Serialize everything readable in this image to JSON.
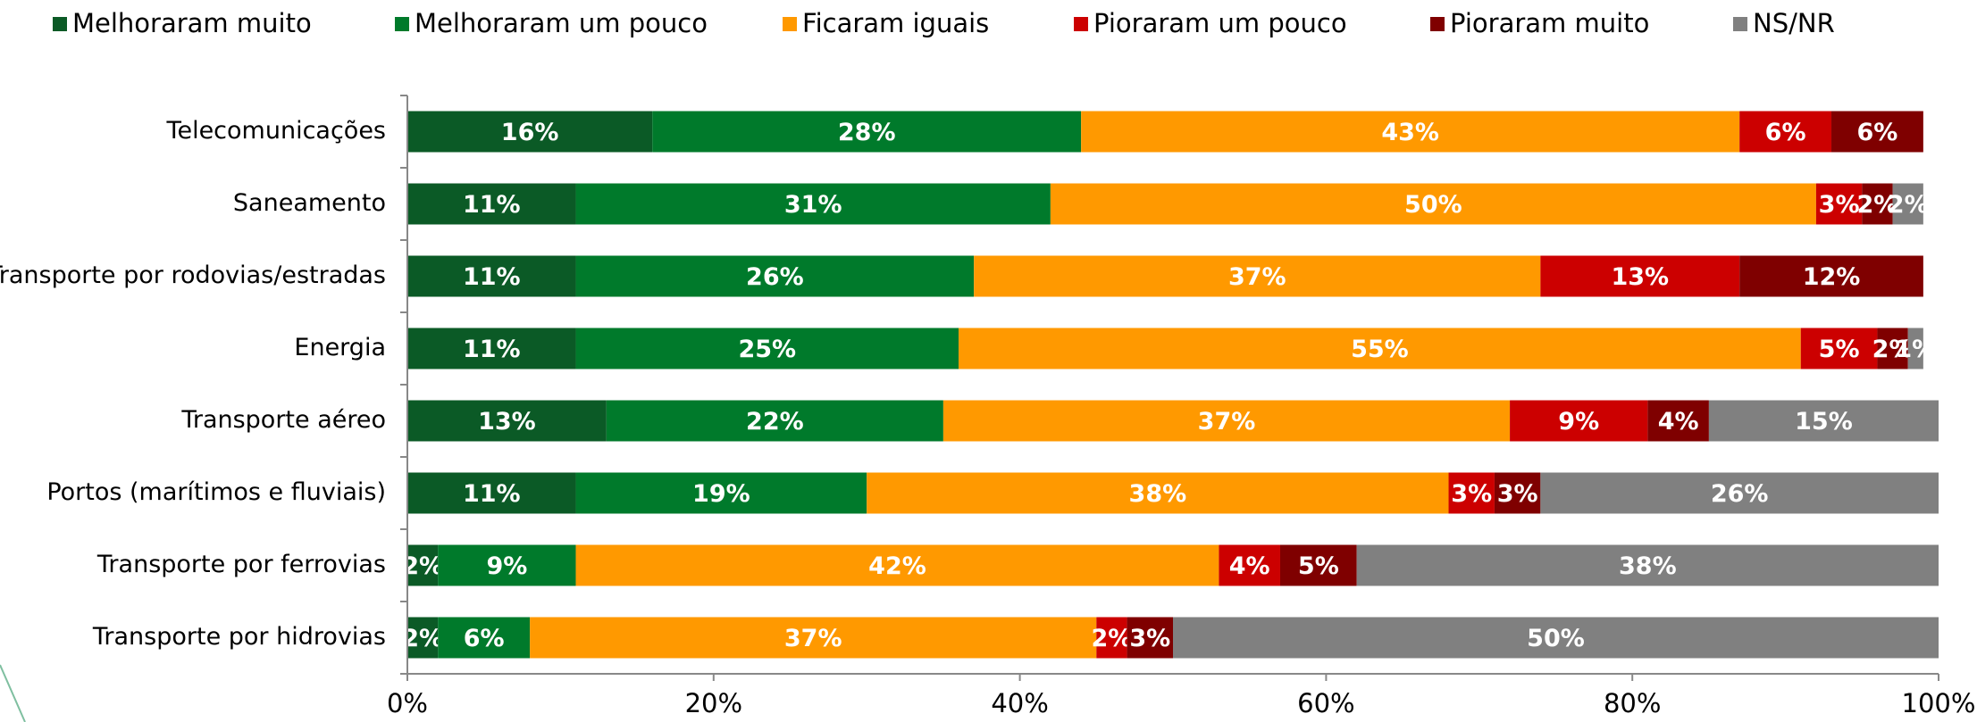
{
  "chart_data": {
    "type": "stacked-barh",
    "categories": [
      "Telecomunicações",
      "Saneamento",
      "Transporte por rodovias/estradas",
      "Energia",
      "Transporte aéreo",
      "Portos (marítimos e fluviais)",
      "Transporte por ferrovias",
      "Transporte por hidrovias"
    ],
    "series": [
      {
        "name": "Melhoraram muito",
        "color": "#0b5a26",
        "values": [
          16,
          11,
          11,
          11,
          13,
          11,
          2,
          2
        ],
        "value_labels": [
          "16%",
          "11%",
          "11%",
          "11%",
          "13%",
          "11%",
          "2%",
          "2%"
        ]
      },
      {
        "name": "Melhoraram um pouco",
        "color": "#007a2b",
        "values": [
          28,
          31,
          26,
          25,
          22,
          19,
          9,
          6
        ],
        "value_labels": [
          "28%",
          "31%",
          "26%",
          "25%",
          "22%",
          "19%",
          "9%",
          "6%"
        ]
      },
      {
        "name": "Ficaram iguais",
        "color": "#ff9900",
        "values": [
          43,
          50,
          37,
          55,
          37,
          38,
          42,
          37
        ],
        "value_labels": [
          "43%",
          "50%",
          "37%",
          "55%",
          "37%",
          "38%",
          "42%",
          "37%"
        ]
      },
      {
        "name": "Pioraram um pouco",
        "color": "#cc0000",
        "values": [
          6,
          3,
          13,
          5,
          9,
          3,
          4,
          2
        ],
        "value_labels": [
          "6%",
          "3%",
          "13%",
          "5%",
          "9%",
          "3%",
          "4%",
          "2%"
        ]
      },
      {
        "name": "Pioraram muito",
        "color": "#7f0000",
        "values": [
          6,
          2,
          12,
          2,
          4,
          3,
          5,
          3
        ],
        "value_labels": [
          "6%",
          "2%",
          "12%",
          "2%",
          "4%",
          "3%",
          "5%",
          "3%"
        ]
      },
      {
        "name": "NS/NR",
        "color": "#808080",
        "values": [
          0,
          2,
          0,
          1,
          15,
          26,
          38,
          50
        ],
        "value_labels": [
          null,
          "2%",
          null,
          "1%",
          "15%",
          "26%",
          "38%",
          "50%"
        ]
      }
    ],
    "xlim": [
      0,
      100
    ],
    "xticks": [
      {
        "value": 0,
        "label": "0%"
      },
      {
        "value": 20,
        "label": "20%"
      },
      {
        "value": 40,
        "label": "40%"
      },
      {
        "value": 60,
        "label": "60%"
      },
      {
        "value": 80,
        "label": "80%"
      },
      {
        "value": 100,
        "label": "100%"
      }
    ],
    "legend": "top"
  }
}
